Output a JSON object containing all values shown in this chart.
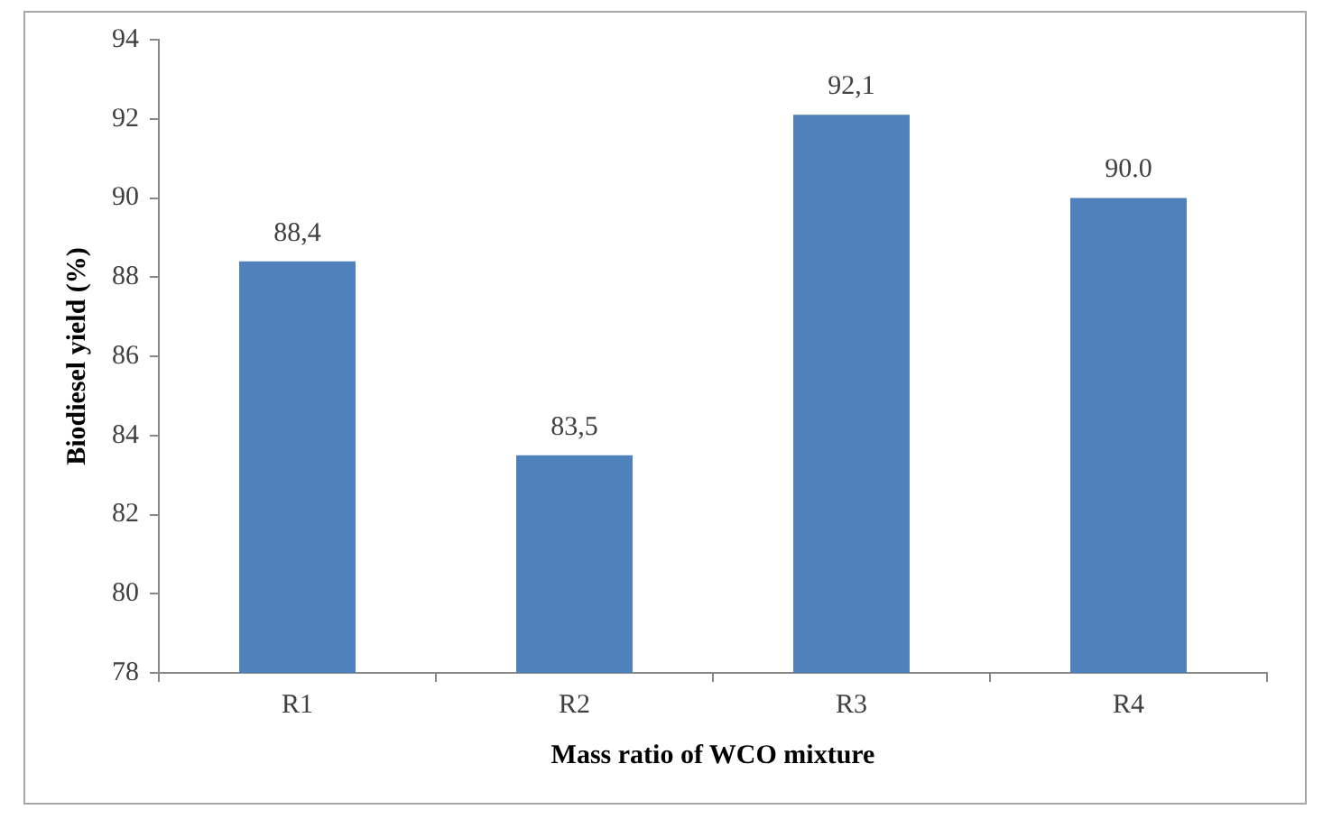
{
  "chart_data": {
    "type": "bar",
    "xlabel": "Mass ratio of WCO mixture",
    "ylabel": "Biodiesel yield (%)",
    "categories": [
      "R1",
      "R2",
      "R3",
      "R4"
    ],
    "values": [
      88.4,
      83.5,
      92.1,
      90.0
    ],
    "value_labels": [
      "88,4",
      "83,5",
      "92,1",
      "90.0"
    ],
    "color": "#4f81bd",
    "ylim": [
      78,
      94
    ],
    "yticks": [
      78,
      80,
      82,
      84,
      86,
      88,
      90,
      92,
      94
    ],
    "grid": false,
    "legend": false
  }
}
